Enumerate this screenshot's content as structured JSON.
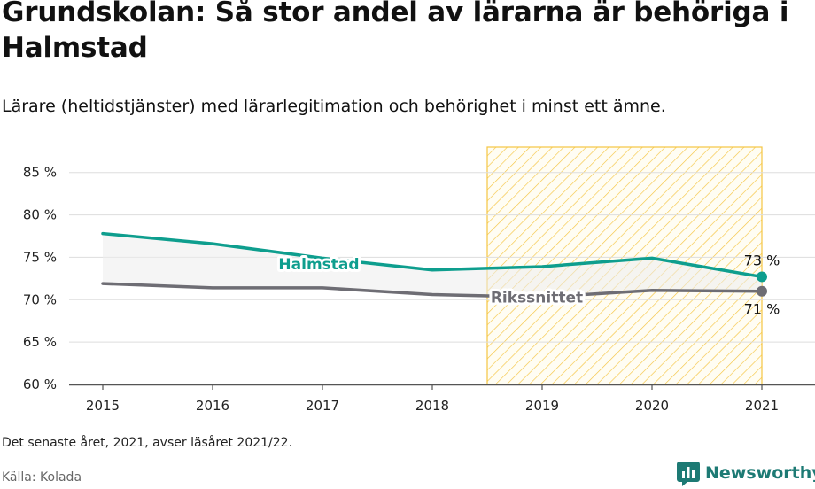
{
  "header": {
    "title": "Grundskolan: Så stor andel av lärarna är behöriga i Halmstad",
    "subtitle": "Lärare (heltidstjänster) med lärarlegitimation och behörighet i minst ett ämne."
  },
  "footer": {
    "note": "Det senaste året, 2021, avser läsåret 2021/22.",
    "source": "Källa: Kolada",
    "brand": "Newsworthy"
  },
  "colors": {
    "halmstad": "#0e9e8e",
    "riksnittet": "#6e6d74",
    "highlight": "#f5c542",
    "grid": "#dddddd",
    "axis": "#555555"
  },
  "icons": {
    "brand": "bar-chart-icon"
  },
  "chart_data": {
    "type": "line",
    "x": [
      2015,
      2016,
      2017,
      2018,
      2019,
      2020,
      2021
    ],
    "ylim": [
      60,
      88
    ],
    "yticks": [
      60,
      65,
      70,
      75,
      80,
      85
    ],
    "ytick_labels": [
      "60 %",
      "65 %",
      "70 %",
      "75 %",
      "80 %",
      "85 %"
    ],
    "xtick_labels": [
      "2015",
      "2016",
      "2017",
      "2018",
      "2019",
      "2020",
      "2021"
    ],
    "highlight_range": [
      2018.5,
      2021
    ],
    "grid": true,
    "series": [
      {
        "name": "Halmstad",
        "values": [
          77.8,
          76.6,
          74.9,
          73.5,
          73.9,
          74.9,
          72.7
        ],
        "end_label": "73 %"
      },
      {
        "name": "Rikssnittet",
        "values": [
          71.9,
          71.4,
          71.4,
          70.6,
          70.3,
          71.1,
          71.0
        ],
        "end_label": "71 %"
      }
    ]
  }
}
